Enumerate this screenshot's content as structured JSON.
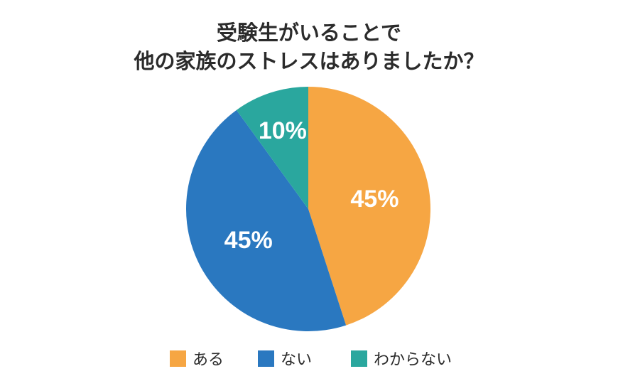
{
  "title": {
    "line1": "受験生がいることで",
    "line2": "他の家族のストレスはありましたか？"
  },
  "colors": {
    "aru": "#F6A643",
    "nai": "#2A78C0",
    "wakaranai": "#2AA79E",
    "label_text": "#FFFFFF"
  },
  "chart_data": {
    "type": "pie",
    "title": "受験生がいることで 他の家族のストレスはありましたか？",
    "categories": [
      "ある",
      "ない",
      "わからない"
    ],
    "values": [
      45,
      45,
      10
    ],
    "unit": "%",
    "data_labels": [
      "45%",
      "45%",
      "10%"
    ],
    "start_angle_deg": 0,
    "direction": "clockwise",
    "legend_position": "bottom"
  },
  "legend": {
    "items": [
      {
        "label": "ある",
        "color": "#F6A643"
      },
      {
        "label": "ない",
        "color": "#2A78C0"
      },
      {
        "label": "わからない",
        "color": "#2AA79E"
      }
    ]
  }
}
